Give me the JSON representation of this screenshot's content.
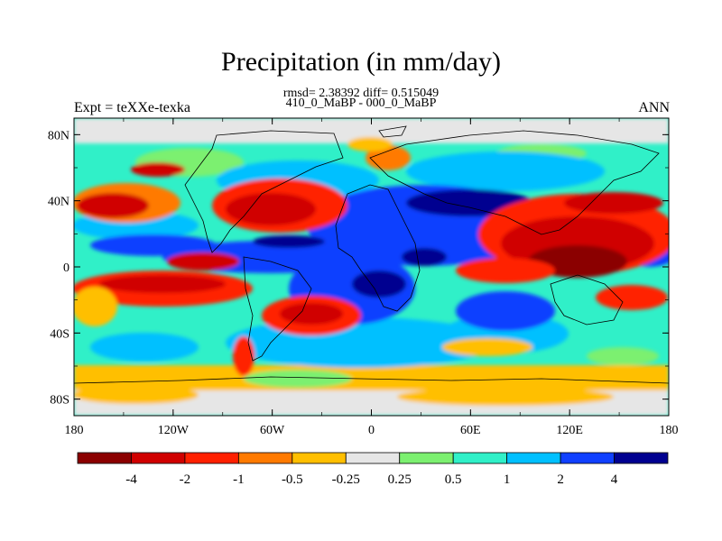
{
  "title": "Precipitation (in mm/day)",
  "stats_line": "rmsd= 2.38392 diff= 0.515049",
  "comparison_line": "410_0_MaBP - 000_0_MaBP",
  "experiment_label": "Expt = teXXe-texka",
  "season_label": "ANN",
  "lat_ticks": [
    "80N",
    "40N",
    "0",
    "40S",
    "80S"
  ],
  "lon_ticks": [
    "180",
    "120W",
    "60W",
    "0",
    "60E",
    "120E",
    "180"
  ],
  "colorbar": {
    "labels": [
      "-4",
      "-2",
      "-1",
      "-0.5",
      "-0.25",
      "0.25",
      "0.5",
      "1",
      "2",
      "4"
    ],
    "colors": [
      "#8b0000",
      "#d00000",
      "#ff2000",
      "#ff7a00",
      "#ffbf00",
      "#e6e6e6",
      "#7cf070",
      "#30f0c8",
      "#00c0ff",
      "#1040ff",
      "#000090"
    ]
  },
  "colors": {
    "dark_red": "#8b0000",
    "red": "#d00000",
    "orange_red": "#ff2000",
    "orange": "#ff7a00",
    "amber": "#ffbf00",
    "grey": "#e6e6e6",
    "light_green": "#7cf070",
    "cyan": "#30f0c8",
    "sky": "#00c0ff",
    "blue": "#1040ff",
    "navy": "#000090"
  }
}
